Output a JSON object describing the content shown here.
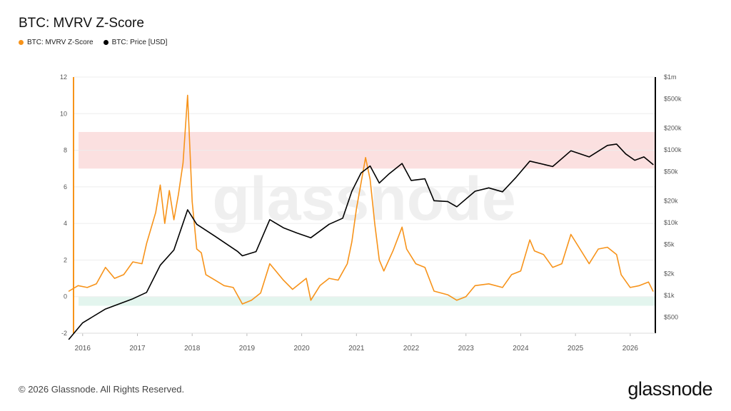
{
  "title": "BTC: MVRV Z-Score",
  "footer": {
    "copyright": "© 2026 Glassnode. All Rights Reserved."
  },
  "brand": {
    "logo_text": "glassnode",
    "watermark_text": "glassnode"
  },
  "colors": {
    "zscore": "#F7931A",
    "price": "#000000",
    "red_band": "#FBE0E0",
    "green_band": "#E3F5EE",
    "grid": "#EDEDED"
  },
  "chart_data": {
    "type": "line",
    "title": "BTC: MVRV Z-Score",
    "legend_position": "top-left",
    "grid": true,
    "x_ticks": [
      "2016",
      "2017",
      "2018",
      "2019",
      "2020",
      "2021",
      "2022",
      "2023",
      "2024",
      "2025",
      "2026"
    ],
    "x_range": [
      "2015-10",
      "2026-06"
    ],
    "left_axis": {
      "ticks": [
        "12",
        "10",
        "8",
        "6",
        "4",
        "2",
        "0",
        "-2"
      ],
      "range": [
        -2,
        12
      ]
    },
    "right_axis": {
      "scale": "log",
      "ticks": [
        "$1m",
        "$500k",
        "$200k",
        "$100k",
        "$50k",
        "$20k",
        "$10k",
        "$5k",
        "$2k",
        "$1k",
        "$500"
      ]
    },
    "bands": [
      {
        "axis": "left",
        "from": 7,
        "to": 9,
        "color": "#FBE0E0"
      },
      {
        "axis": "left",
        "from": -0.5,
        "to": 0,
        "color": "#E3F5EE"
      }
    ],
    "series": [
      {
        "name": "BTC: MVRV Z-Score",
        "axis": "left",
        "color": "#F7931A",
        "points": [
          [
            "2015-10",
            0.3
          ],
          [
            "2015-12",
            0.6
          ],
          [
            "2016-02",
            0.5
          ],
          [
            "2016-04",
            0.7
          ],
          [
            "2016-06",
            1.6
          ],
          [
            "2016-08",
            1.0
          ],
          [
            "2016-10",
            1.2
          ],
          [
            "2016-12",
            1.9
          ],
          [
            "2017-02",
            1.8
          ],
          [
            "2017-03",
            2.9
          ],
          [
            "2017-05",
            4.6
          ],
          [
            "2017-06",
            6.1
          ],
          [
            "2017-07",
            4.0
          ],
          [
            "2017-08",
            5.8
          ],
          [
            "2017-09",
            4.2
          ],
          [
            "2017-10",
            5.6
          ],
          [
            "2017-11",
            7.3
          ],
          [
            "2017-12",
            11.0
          ],
          [
            "2018-01",
            5.2
          ],
          [
            "2018-02",
            2.6
          ],
          [
            "2018-03",
            2.4
          ],
          [
            "2018-04",
            1.2
          ],
          [
            "2018-06",
            0.9
          ],
          [
            "2018-08",
            0.6
          ],
          [
            "2018-10",
            0.5
          ],
          [
            "2018-12",
            -0.4
          ],
          [
            "2019-02",
            -0.2
          ],
          [
            "2019-04",
            0.2
          ],
          [
            "2019-06",
            1.8
          ],
          [
            "2019-07",
            1.5
          ],
          [
            "2019-09",
            0.9
          ],
          [
            "2019-11",
            0.4
          ],
          [
            "2020-01",
            0.8
          ],
          [
            "2020-02",
            1.0
          ],
          [
            "2020-03",
            -0.2
          ],
          [
            "2020-05",
            0.6
          ],
          [
            "2020-07",
            1.0
          ],
          [
            "2020-09",
            0.9
          ],
          [
            "2020-11",
            1.8
          ],
          [
            "2020-12",
            3.0
          ],
          [
            "2021-01",
            4.8
          ],
          [
            "2021-03",
            7.6
          ],
          [
            "2021-04",
            6.4
          ],
          [
            "2021-05",
            4.0
          ],
          [
            "2021-06",
            2.0
          ],
          [
            "2021-07",
            1.4
          ],
          [
            "2021-09",
            2.5
          ],
          [
            "2021-11",
            3.8
          ],
          [
            "2021-12",
            2.6
          ],
          [
            "2022-02",
            1.8
          ],
          [
            "2022-04",
            1.6
          ],
          [
            "2022-06",
            0.3
          ],
          [
            "2022-09",
            0.1
          ],
          [
            "2022-11",
            -0.2
          ],
          [
            "2023-01",
            0.0
          ],
          [
            "2023-03",
            0.6
          ],
          [
            "2023-06",
            0.7
          ],
          [
            "2023-09",
            0.5
          ],
          [
            "2023-11",
            1.2
          ],
          [
            "2024-01",
            1.4
          ],
          [
            "2024-03",
            3.1
          ],
          [
            "2024-04",
            2.5
          ],
          [
            "2024-06",
            2.3
          ],
          [
            "2024-08",
            1.6
          ],
          [
            "2024-10",
            1.8
          ],
          [
            "2024-12",
            3.4
          ],
          [
            "2025-02",
            2.6
          ],
          [
            "2025-04",
            1.8
          ],
          [
            "2025-06",
            2.6
          ],
          [
            "2025-08",
            2.7
          ],
          [
            "2025-10",
            2.3
          ],
          [
            "2025-11",
            1.2
          ],
          [
            "2026-01",
            0.5
          ],
          [
            "2026-03",
            0.6
          ],
          [
            "2026-05",
            0.8
          ],
          [
            "2026-06",
            0.3
          ]
        ]
      },
      {
        "name": "BTC: Price [USD]",
        "axis": "right",
        "color": "#000000",
        "points": [
          [
            "2015-10",
            250
          ],
          [
            "2016-01",
            420
          ],
          [
            "2016-06",
            650
          ],
          [
            "2016-12",
            900
          ],
          [
            "2017-03",
            1100
          ],
          [
            "2017-06",
            2600
          ],
          [
            "2017-09",
            4200
          ],
          [
            "2017-12",
            15000
          ],
          [
            "2018-02",
            9500
          ],
          [
            "2018-06",
            6500
          ],
          [
            "2018-11",
            4000
          ],
          [
            "2018-12",
            3500
          ],
          [
            "2019-03",
            4000
          ],
          [
            "2019-06",
            11000
          ],
          [
            "2019-09",
            8500
          ],
          [
            "2019-12",
            7200
          ],
          [
            "2020-03",
            6200
          ],
          [
            "2020-07",
            9500
          ],
          [
            "2020-10",
            11500
          ],
          [
            "2020-12",
            27000
          ],
          [
            "2021-02",
            48000
          ],
          [
            "2021-04",
            60000
          ],
          [
            "2021-06",
            35000
          ],
          [
            "2021-08",
            46000
          ],
          [
            "2021-11",
            65000
          ],
          [
            "2022-01",
            38000
          ],
          [
            "2022-04",
            40000
          ],
          [
            "2022-06",
            20000
          ],
          [
            "2022-09",
            19500
          ],
          [
            "2022-11",
            16500
          ],
          [
            "2023-03",
            27000
          ],
          [
            "2023-06",
            30000
          ],
          [
            "2023-09",
            26500
          ],
          [
            "2023-12",
            42000
          ],
          [
            "2024-03",
            70000
          ],
          [
            "2024-08",
            59000
          ],
          [
            "2024-12",
            97000
          ],
          [
            "2025-04",
            80000
          ],
          [
            "2025-08",
            115000
          ],
          [
            "2025-10",
            120000
          ],
          [
            "2025-12",
            88000
          ],
          [
            "2026-02",
            72000
          ],
          [
            "2026-04",
            80000
          ],
          [
            "2026-06",
            63000
          ]
        ]
      }
    ]
  }
}
